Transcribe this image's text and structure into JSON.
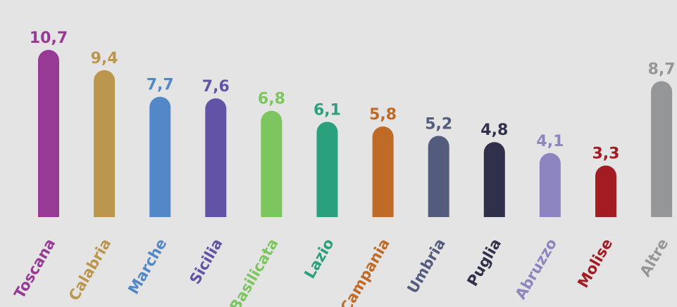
{
  "chart_data": {
    "type": "bar",
    "categories": [
      "Toscana",
      "Calabria",
      "Marche",
      "Sicilia",
      "Basilicata",
      "Lazio",
      "Campania",
      "Umbria",
      "Puglia",
      "Abruzzo",
      "Molise",
      "Altre"
    ],
    "values": [
      10.7,
      9.4,
      7.7,
      7.6,
      6.8,
      6.1,
      5.8,
      5.2,
      4.8,
      4.1,
      3.3,
      8.7
    ],
    "value_labels": [
      "10,7",
      "9,4",
      "7,7",
      "7,6",
      "6,8",
      "6,1",
      "5,8",
      "5,2",
      "4,8",
      "4,1",
      "3,3",
      "8,7"
    ],
    "colors": [
      "#973a96",
      "#bb964d",
      "#5287c8",
      "#6253a6",
      "#7dc55e",
      "#2aa17c",
      "#c06a28",
      "#535c7d",
      "#31304a",
      "#8c85c0",
      "#a31c22",
      "#959697"
    ],
    "ylim": [
      0,
      10.7
    ],
    "title": "",
    "xlabel": "",
    "ylabel": "",
    "grid": false,
    "legend": "none"
  }
}
